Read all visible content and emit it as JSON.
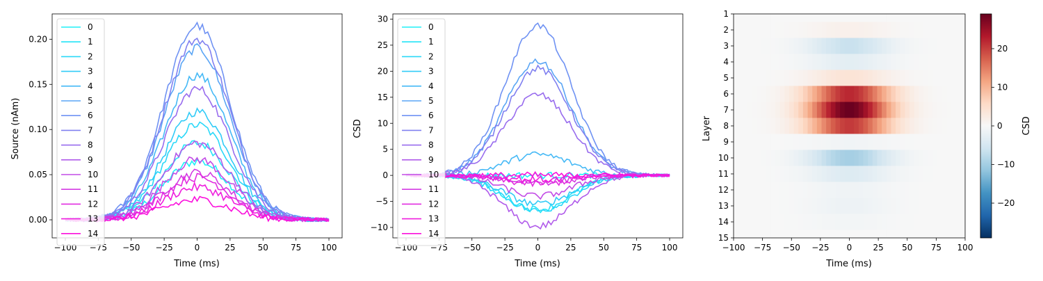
{
  "chart_data": [
    {
      "type": "line",
      "xlabel": "Time (ms)",
      "ylabel": "Source (nAm)",
      "xlim": [
        -110,
        110
      ],
      "ylim": [
        -0.02,
        0.228
      ],
      "xticks": [
        -100,
        -75,
        -50,
        -25,
        0,
        25,
        50,
        75,
        100
      ],
      "yticks": [
        0.0,
        0.05,
        0.1,
        0.15,
        0.2
      ],
      "ytick_labels": [
        "0.00",
        "0.05",
        "0.10",
        "0.15",
        "0.20"
      ],
      "x_range": [
        -100,
        100
      ],
      "waveform": "gaussian",
      "waveform_sigma_ms": 25,
      "legend": {
        "position": "top-left",
        "entries": [
          "0",
          "1",
          "2",
          "3",
          "4",
          "5",
          "6",
          "7",
          "8",
          "9",
          "10",
          "11",
          "12",
          "13",
          "14"
        ]
      },
      "series": [
        {
          "name": "0",
          "peak": 0.065,
          "color": "#1ef0f7"
        },
        {
          "name": "1",
          "peak": 0.085,
          "color": "#23e4f8"
        },
        {
          "name": "2",
          "peak": 0.105,
          "color": "#2ad8f8"
        },
        {
          "name": "3",
          "peak": 0.12,
          "color": "#31cbf7"
        },
        {
          "name": "4",
          "peak": 0.16,
          "color": "#45b9f6"
        },
        {
          "name": "5",
          "peak": 0.19,
          "color": "#5aa5f5"
        },
        {
          "name": "6",
          "peak": 0.215,
          "color": "#6f92f3"
        },
        {
          "name": "7",
          "peak": 0.2,
          "color": "#8080f0"
        },
        {
          "name": "8",
          "peak": 0.145,
          "color": "#986cee"
        },
        {
          "name": "9",
          "peak": 0.085,
          "color": "#b05aea"
        },
        {
          "name": "10",
          "peak": 0.067,
          "color": "#c24be6"
        },
        {
          "name": "11",
          "peak": 0.052,
          "color": "#d43be3"
        },
        {
          "name": "12",
          "peak": 0.047,
          "color": "#e22de0"
        },
        {
          "name": "13",
          "peak": 0.036,
          "color": "#ef1ede"
        },
        {
          "name": "14",
          "peak": 0.022,
          "color": "#fb0fdc"
        }
      ]
    },
    {
      "type": "line",
      "xlabel": "Time (ms)",
      "ylabel": "CSD",
      "xlim": [
        -110,
        110
      ],
      "ylim": [
        -12,
        31
      ],
      "xticks": [
        -100,
        -75,
        -50,
        -25,
        0,
        25,
        50,
        75,
        100
      ],
      "yticks": [
        -10,
        -5,
        0,
        5,
        10,
        15,
        20,
        25,
        30
      ],
      "ytick_labels": [
        "−10",
        "−5",
        "0",
        "5",
        "10",
        "15",
        "20",
        "25",
        "30"
      ],
      "x_range": [
        -100,
        100
      ],
      "waveform": "gaussian",
      "waveform_sigma_ms": 25,
      "legend": {
        "position": "top-left",
        "entries": [
          "0",
          "1",
          "2",
          "3",
          "4",
          "5",
          "6",
          "7",
          "8",
          "9",
          "10",
          "11",
          "12",
          "13",
          "14"
        ]
      },
      "series": [
        {
          "name": "0",
          "peak": 0.0,
          "color": "#1ef0f7"
        },
        {
          "name": "1",
          "peak": -6.5,
          "color": "#23e4f8"
        },
        {
          "name": "2",
          "peak": -6.8,
          "color": "#2ad8f8"
        },
        {
          "name": "3",
          "peak": -5.5,
          "color": "#31cbf7"
        },
        {
          "name": "4",
          "peak": 4.0,
          "color": "#45b9f6"
        },
        {
          "name": "5",
          "peak": 22.0,
          "color": "#5aa5f5"
        },
        {
          "name": "6",
          "peak": 28.8,
          "color": "#6f92f3"
        },
        {
          "name": "7",
          "peak": 20.5,
          "color": "#8080f0"
        },
        {
          "name": "8",
          "peak": 15.5,
          "color": "#986cee"
        },
        {
          "name": "9",
          "peak": -9.8,
          "color": "#b05aea"
        },
        {
          "name": "10",
          "peak": -4.0,
          "color": "#c24be6"
        },
        {
          "name": "11",
          "peak": -1.3,
          "color": "#d43be3"
        },
        {
          "name": "12",
          "peak": -1.6,
          "color": "#e22de0"
        },
        {
          "name": "13",
          "peak": -0.8,
          "color": "#ef1ede"
        },
        {
          "name": "14",
          "peak": 0.0,
          "color": "#fb0fdc"
        }
      ]
    },
    {
      "type": "heatmap",
      "xlabel": "Time (ms)",
      "ylabel": "Layer",
      "xlim": [
        -100,
        100
      ],
      "xticks": [
        -100,
        -75,
        -50,
        -25,
        0,
        25,
        50,
        75,
        100
      ],
      "yticks": [
        "1",
        "2",
        "3",
        "4",
        "5",
        "6",
        "7",
        "8",
        "9",
        "10",
        "11",
        "12",
        "13",
        "14",
        "15"
      ],
      "colormap": "RdBu_r",
      "color_range": [
        -29,
        29
      ],
      "colorbar": {
        "label": "CSD",
        "ticks": [
          -20,
          -10,
          0,
          10,
          20
        ],
        "tick_labels": [
          "−20",
          "−10",
          "0",
          "10",
          "20"
        ]
      },
      "waveform_sigma_ms": 25,
      "rows": [
        {
          "layer": "1",
          "peak": 0.0
        },
        {
          "layer": "2",
          "peak": 1.5
        },
        {
          "layer": "3",
          "peak": -6.5
        },
        {
          "layer": "4",
          "peak": -3.0
        },
        {
          "layer": "5",
          "peak": 4.0
        },
        {
          "layer": "6",
          "peak": 22.0
        },
        {
          "layer": "7",
          "peak": 28.8
        },
        {
          "layer": "8",
          "peak": 20.5
        },
        {
          "layer": "9",
          "peak": -1.0
        },
        {
          "layer": "10",
          "peak": -9.8
        },
        {
          "layer": "11",
          "peak": -4.0
        },
        {
          "layer": "12",
          "peak": -1.3
        },
        {
          "layer": "13",
          "peak": -1.6
        },
        {
          "layer": "14",
          "peak": -0.8
        },
        {
          "layer": "15",
          "peak": 0.0
        }
      ]
    }
  ]
}
